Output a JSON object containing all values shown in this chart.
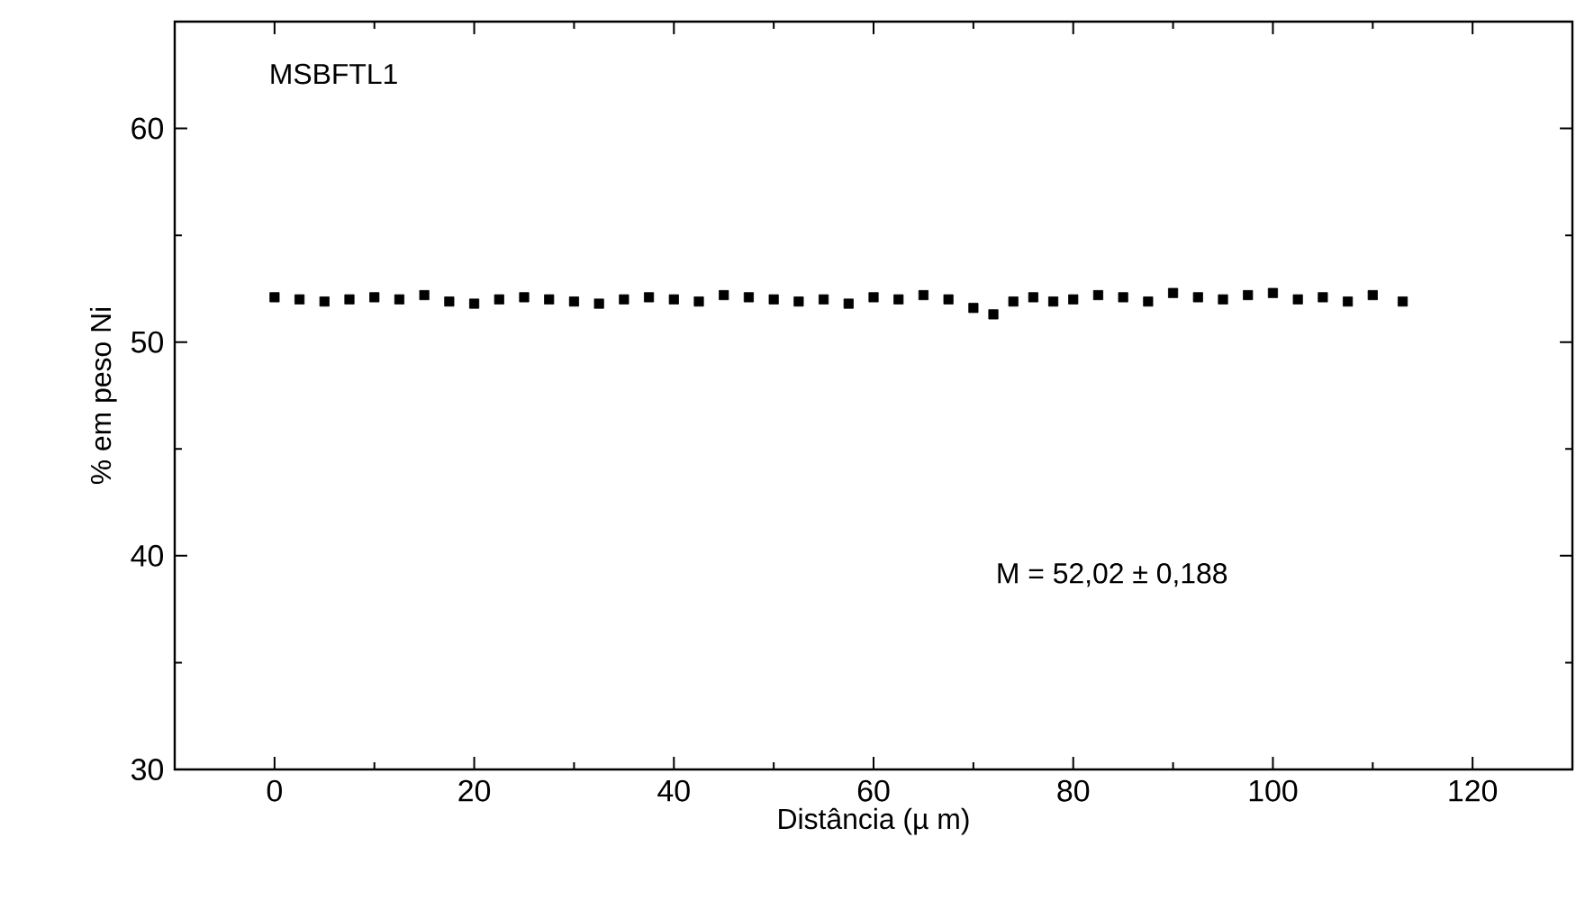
{
  "chart_data": {
    "type": "scatter",
    "xlabel": "Distância (µ m)",
    "ylabel": "% em peso Ni",
    "annotations": [
      "MSBFTL1",
      "M = 52,02 ± 0,188"
    ],
    "x": [
      0,
      2.5,
      5,
      7.5,
      10,
      12.5,
      15,
      17.5,
      20,
      22.5,
      25,
      27.5,
      30,
      32.5,
      35,
      37.5,
      40,
      42.5,
      45,
      47.5,
      50,
      52.5,
      55,
      57.5,
      60,
      62.5,
      65,
      67.5,
      70,
      72,
      74,
      76,
      78,
      80,
      82.5,
      85,
      87.5,
      90,
      92.5,
      95,
      97.5,
      100,
      102.5,
      105,
      107.5,
      110,
      113
    ],
    "values": [
      52.1,
      52.0,
      51.9,
      52.0,
      52.1,
      52.0,
      52.2,
      51.9,
      51.8,
      52.0,
      52.1,
      52.0,
      51.9,
      51.8,
      52.0,
      52.1,
      52.0,
      51.9,
      52.2,
      52.1,
      52.0,
      51.9,
      52.0,
      51.8,
      52.1,
      52.0,
      52.2,
      52.0,
      51.6,
      51.3,
      51.9,
      52.1,
      51.9,
      52.0,
      52.2,
      52.1,
      51.9,
      52.3,
      52.1,
      52.0,
      52.2,
      52.3,
      52.0,
      52.1,
      51.9,
      52.2,
      51.9
    ],
    "color": "#000000",
    "marker": "square",
    "xlim": [
      -10,
      130
    ],
    "ylim": [
      30,
      65
    ],
    "xticks": [
      0,
      20,
      40,
      60,
      80,
      100,
      120
    ],
    "yticks": [
      30,
      40,
      50,
      60
    ]
  }
}
